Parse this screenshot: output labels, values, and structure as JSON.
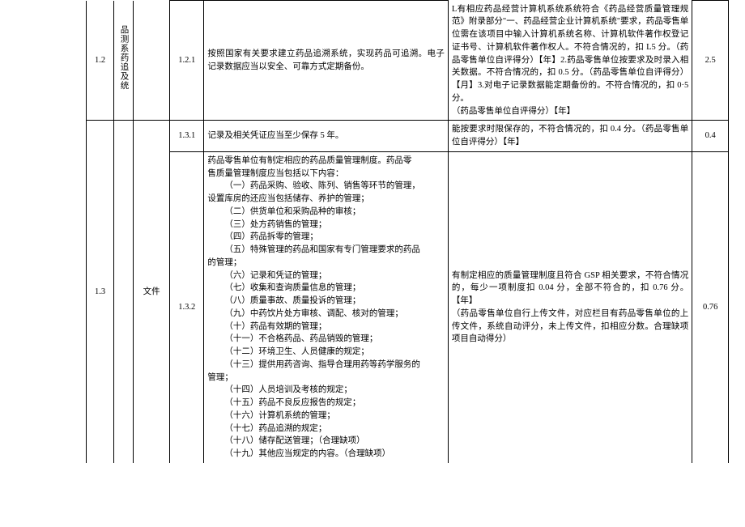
{
  "table": {
    "rows": [
      {
        "col_a": "",
        "col_b": "1.2",
        "col_c": "品测系药追及统",
        "col_d": "",
        "col_e": "1.2.1",
        "col_f": "按照国家有关要求建立药品追溯系统，实现药品可追溯。电子记录数据应当以安全、可靠方式定期备份。",
        "col_g": "L有相应药品经营计算机系统系统符合《药品经营质量管理规范》附录部分\"一、药品经营企业计算机系统\"要求，药品零售单位需在该项目中输入计算机系统名称、计算机软件著作权登记证书号、计算机软件著作权人。不符合情况的，扣 L5 分。（药品零售单位自评得分）【年】2.药品零售单位按要求及时录入相关数据。不符合情况的，扣 0.5 分。（药品零售单位自评得分）【月】3.对电子记录数据能定期备份的。不符合情况的，扣 0·5 分。\n（药品零售单位自评得分）【年】",
        "col_h": "2.5"
      },
      {
        "col_e": "1.3.1",
        "col_f": "记录及相关凭证应当至少保存 5 年。",
        "col_g": "能按要求时限保存的，不符合情况的，扣 0.4 分。（药品零售单位自评得分）【年】",
        "col_h": "0.4"
      },
      {
        "col_b": "1.3",
        "col_d": "文件",
        "col_e": "1.3.2",
        "col_f_lines": [
          "药品零售单位有制定相应的药品质量管理制度。药品零",
          "售质量管理制度应当包括以下内容：",
          "（一）药品采购、验收、陈列、销售等环节的管理，",
          "设置库房的还应当包括储存、养护的管理；",
          "（二）供货单位和采购品种的审核；",
          "（三）处方药销售的管理；",
          "（四）药品拆零的管理；",
          "（五）特殊管理的药品和国家有专门管理要求的药品",
          "的管理；",
          "（六）记录和凭证的管理；",
          "（七）收集和查询质量信息的管理；",
          "（八）质量事故、质量投诉的管理；",
          "（九）中药饮片处方审核、调配、核对的管理；",
          "（十）药品有效期的管理；",
          "（十一）不合格药品、药品销毁的管理；",
          "（十二）环境卫生、人员健康的规定；",
          "（十三）提供用药咨询、指导合理用药等药学服务的",
          "管理；",
          "（十四）人员培训及考核的规定；",
          "（十五）药品不良反应报告的规定；",
          "（十六）计算机系统的管理；",
          "（十七）药品追溯的规定；",
          "（十八）储存配送管理；（合理缺项）",
          "（十九）其他应当规定的内容。（合理缺项）"
        ],
        "col_g": "有制定相应的质量管理制度且符合 GSP 相关要求，不符合情况的，每少一项制度扣 0.04 分，全部不符合的，扣 0.76 分。【年】\n（药品零售单位自行上传文件，对应栏目有药品零售单位的上传文件，系统自动评分，未上传文件，扣相应分数。合理缺项项目自动得分）",
        "col_h": "0.76"
      }
    ]
  },
  "style": {
    "background_color": "#ffffff",
    "border_color": "#000000",
    "font_size": 10.5,
    "text_color": "#000000"
  }
}
